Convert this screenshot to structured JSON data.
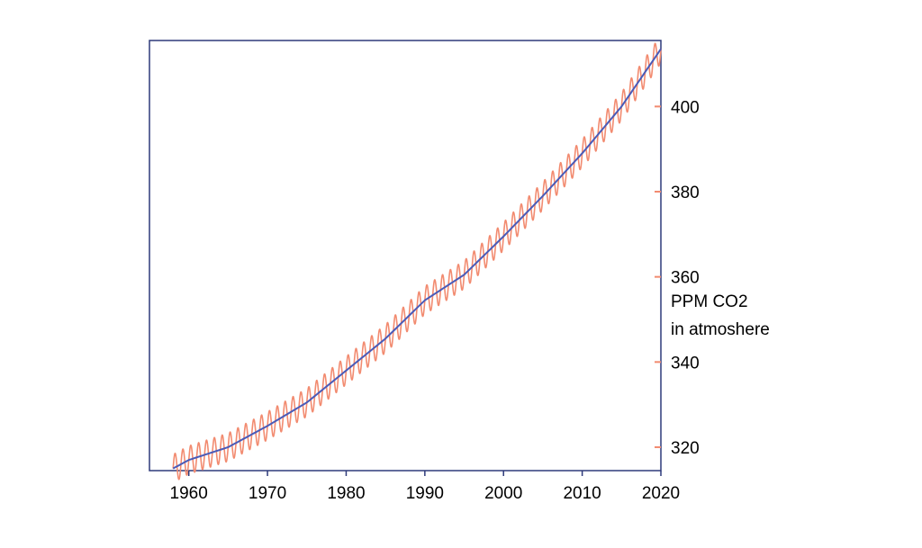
{
  "chart_data": {
    "type": "line",
    "title": "",
    "xlabel": "",
    "ylabel_line1": "PPM CO2",
    "ylabel_line2": "in atmoshere",
    "xlim": [
      1955,
      2020
    ],
    "ylim": [
      314.5,
      415.5
    ],
    "x_ticks": [
      1960,
      1970,
      1980,
      1990,
      2000,
      2010,
      2020
    ],
    "x_tick_labels": [
      "1960",
      "1970",
      "1980",
      "1990",
      "2000",
      "2010",
      "2020"
    ],
    "y_ticks": [
      320,
      340,
      360,
      380,
      400
    ],
    "y_tick_labels": [
      "320",
      "340",
      "360",
      "380",
      "400"
    ],
    "y_axis_side": "right",
    "grid": false,
    "legend": "none",
    "colors": {
      "frame": "#2e3a7a",
      "monthly": "#f28b70",
      "trend": "#4a5bb8",
      "ytick": "#f28b70"
    },
    "series": [
      {
        "kind": "seasonal-monthly",
        "seasonal_amplitude": 3.3,
        "x": [
          1958,
          1960,
          1965,
          1970,
          1975,
          1980,
          1985,
          1990,
          1995,
          2000,
          2005,
          2010,
          2015,
          2020
        ],
        "values": [
          315.0,
          317.0,
          320.0,
          325.0,
          330.5,
          338.0,
          345.5,
          354.5,
          360.5,
          369.5,
          379.0,
          389.0,
          400.0,
          413.5
        ]
      },
      {
        "kind": "trend",
        "x": [
          1958,
          1960,
          1965,
          1970,
          1975,
          1980,
          1985,
          1990,
          1995,
          2000,
          2005,
          2010,
          2015,
          2020
        ],
        "values": [
          315.0,
          317.0,
          320.0,
          325.0,
          330.5,
          338.0,
          345.5,
          354.5,
          360.5,
          369.5,
          379.0,
          389.0,
          400.0,
          413.5
        ]
      }
    ]
  }
}
